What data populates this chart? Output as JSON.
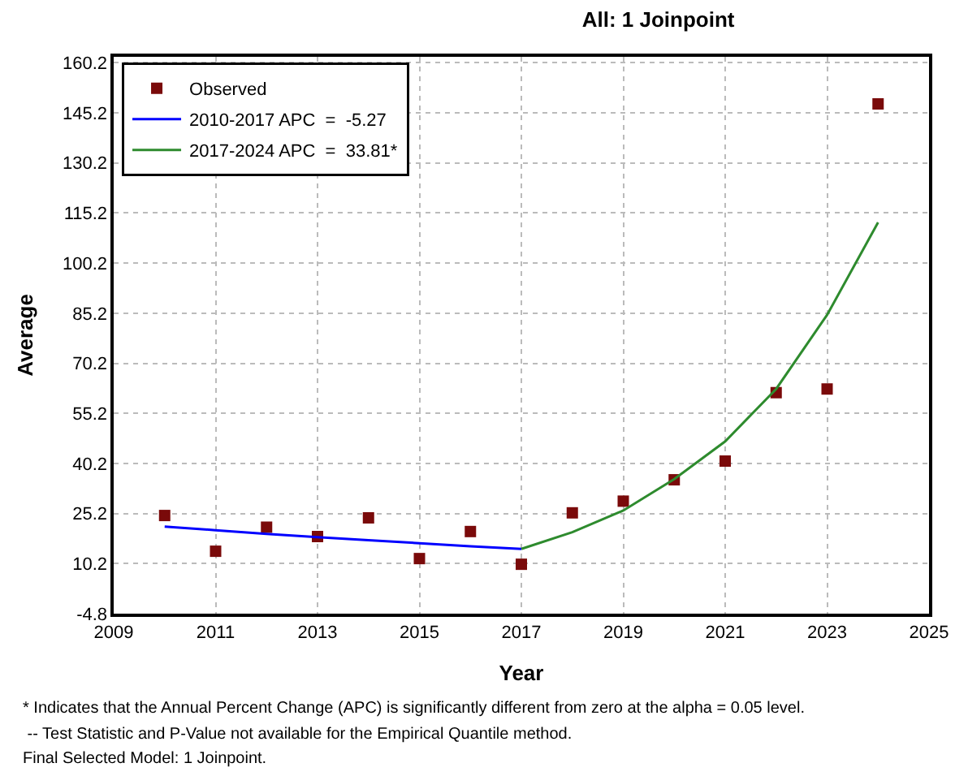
{
  "chart_data": {
    "type": "scatter",
    "title": "All: 1 Joinpoint",
    "xlabel": "Year",
    "ylabel": "Average",
    "series": [
      {
        "name": "Observed",
        "marker": "square",
        "color": "#7a0a0a",
        "x": [
          2010,
          2011,
          2012,
          2013,
          2014,
          2015,
          2016,
          2017,
          2018,
          2019,
          2020,
          2021,
          2022,
          2023,
          2024
        ],
        "values": [
          24.6,
          13.9,
          21.1,
          18.3,
          23.9,
          11.7,
          19.8,
          10.0,
          25.4,
          28.9,
          35.3,
          40.9,
          61.4,
          62.5,
          147.9
        ]
      },
      {
        "name": "2010-2017 APC  =  -5.27",
        "type": "line",
        "marker": "none",
        "line_style": "solid",
        "color": "#0000ff",
        "x": [
          2010,
          2011,
          2012,
          2013,
          2014,
          2015,
          2016,
          2017
        ],
        "values": [
          21.3,
          20.2,
          19.1,
          18.1,
          17.2,
          16.3,
          15.4,
          14.6
        ]
      },
      {
        "name": "2017-2024 APC  =  33.81*",
        "type": "line",
        "marker": "none",
        "line_style": "solid",
        "color": "#2e8b2e",
        "x": [
          2017,
          2018,
          2019,
          2020,
          2021,
          2022,
          2023,
          2024
        ],
        "values": [
          14.6,
          19.6,
          26.1,
          35.5,
          46.8,
          62.5,
          84.7,
          112.4
        ]
      }
    ],
    "xlim": [
      2009,
      2025
    ],
    "xticks": [
      2009,
      2011,
      2013,
      2015,
      2017,
      2019,
      2021,
      2023,
      2025
    ],
    "ylim": [
      -4.8,
      162
    ],
    "yticks": [
      -4.8,
      10.2,
      25.2,
      40.2,
      55.2,
      70.2,
      85.2,
      100.2,
      115.2,
      130.2,
      145.2,
      160.2
    ],
    "grid": true,
    "legend": "top left",
    "annotations": [
      "* Indicates that the Annual Percent Change (APC) is significantly different from zero at the alpha = 0.05 level.",
      " -- Test Statistic and P-Value not available for the Empirical Quantile method.",
      "Final Selected Model: 1 Joinpoint."
    ]
  }
}
